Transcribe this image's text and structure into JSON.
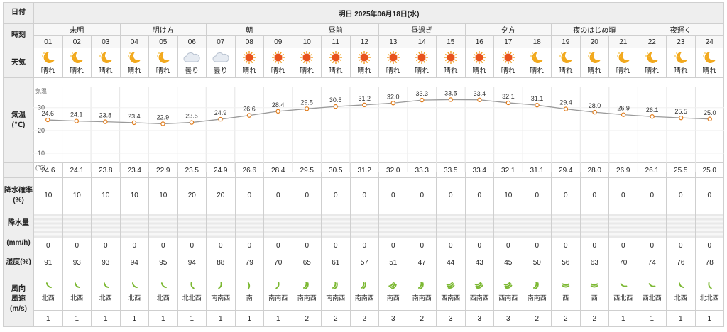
{
  "labels": {
    "date": "日付",
    "time": "時刻",
    "weather": "天気",
    "temp_line1": "気温",
    "temp_line2": "(℃)",
    "rain_prob_line1": "降水確率",
    "rain_prob_line2": "(%)",
    "rain_amt_line1": "降水量",
    "rain_amt_line2": "(mm/h)",
    "humidity": "湿度(%)",
    "wind_line1": "風向",
    "wind_line2": "風速",
    "wind_line3": "(m/s)"
  },
  "header": {
    "date_title": "明日 2025年06月18日(水)"
  },
  "periods": [
    {
      "name": "未明",
      "span": 3
    },
    {
      "name": "明け方",
      "span": 3
    },
    {
      "name": "朝",
      "span": 3
    },
    {
      "name": "昼前",
      "span": 3
    },
    {
      "name": "昼過ぎ",
      "span": 3
    },
    {
      "name": "夕方",
      "span": 3
    },
    {
      "name": "夜のはじめ頃",
      "span": 3
    },
    {
      "name": "夜遅く",
      "span": 3
    }
  ],
  "hours": [
    "01",
    "02",
    "03",
    "04",
    "05",
    "06",
    "07",
    "08",
    "09",
    "10",
    "11",
    "12",
    "13",
    "14",
    "15",
    "16",
    "17",
    "18",
    "19",
    "20",
    "21",
    "22",
    "23",
    "24"
  ],
  "weather": [
    {
      "text": "晴れ",
      "icon": "moon-icon"
    },
    {
      "text": "晴れ",
      "icon": "moon-icon"
    },
    {
      "text": "晴れ",
      "icon": "moon-icon"
    },
    {
      "text": "晴れ",
      "icon": "moon-icon"
    },
    {
      "text": "晴れ",
      "icon": "moon-icon"
    },
    {
      "text": "曇り",
      "icon": "cloud-icon"
    },
    {
      "text": "曇り",
      "icon": "cloud-icon"
    },
    {
      "text": "晴れ",
      "icon": "sun-icon"
    },
    {
      "text": "晴れ",
      "icon": "sun-icon"
    },
    {
      "text": "晴れ",
      "icon": "sun-icon"
    },
    {
      "text": "晴れ",
      "icon": "sun-icon"
    },
    {
      "text": "晴れ",
      "icon": "sun-icon"
    },
    {
      "text": "晴れ",
      "icon": "sun-icon"
    },
    {
      "text": "晴れ",
      "icon": "sun-icon"
    },
    {
      "text": "晴れ",
      "icon": "sun-icon"
    },
    {
      "text": "晴れ",
      "icon": "sun-icon"
    },
    {
      "text": "晴れ",
      "icon": "sun-icon"
    },
    {
      "text": "晴れ",
      "icon": "moon-icon"
    },
    {
      "text": "晴れ",
      "icon": "moon-icon"
    },
    {
      "text": "晴れ",
      "icon": "moon-icon"
    },
    {
      "text": "晴れ",
      "icon": "moon-icon"
    },
    {
      "text": "晴れ",
      "icon": "moon-icon"
    },
    {
      "text": "晴れ",
      "icon": "moon-icon"
    },
    {
      "text": "晴れ",
      "icon": "moon-icon"
    }
  ],
  "temperature": [
    "24.6",
    "24.1",
    "23.8",
    "23.4",
    "22.9",
    "23.5",
    "24.9",
    "26.6",
    "28.4",
    "29.5",
    "30.5",
    "31.2",
    "32.0",
    "33.3",
    "33.5",
    "33.4",
    "32.1",
    "31.1",
    "29.4",
    "28.0",
    "26.9",
    "26.1",
    "25.5",
    "25.0"
  ],
  "rain_probability": [
    "10",
    "10",
    "10",
    "10",
    "10",
    "20",
    "20",
    "0",
    "0",
    "0",
    "0",
    "0",
    "0",
    "0",
    "0",
    "0",
    "10",
    "0",
    "0",
    "0",
    "0",
    "0",
    "0",
    "0"
  ],
  "rain_amount": [
    "0",
    "0",
    "0",
    "0",
    "0",
    "0",
    "0",
    "0",
    "0",
    "0",
    "0",
    "0",
    "0",
    "0",
    "0",
    "0",
    "0",
    "0",
    "0",
    "0",
    "0",
    "0",
    "0",
    "0"
  ],
  "humidity": [
    "91",
    "93",
    "93",
    "94",
    "95",
    "94",
    "88",
    "79",
    "70",
    "65",
    "61",
    "57",
    "51",
    "47",
    "44",
    "43",
    "45",
    "50",
    "56",
    "63",
    "70",
    "74",
    "76",
    "78"
  ],
  "wind_direction": [
    "北西",
    "北西",
    "北西",
    "北西",
    "北西",
    "北北西",
    "南南西",
    "南",
    "南南西",
    "南南西",
    "南南西",
    "南南西",
    "南西",
    "南南西",
    "西南西",
    "西南西",
    "西南西",
    "南南西",
    "西",
    "西",
    "西北西",
    "西北西",
    "北西",
    "北北西"
  ],
  "wind_speed": [
    "1",
    "1",
    "1",
    "1",
    "1",
    "1",
    "1",
    "1",
    "1",
    "2",
    "2",
    "2",
    "3",
    "2",
    "3",
    "3",
    "3",
    "2",
    "2",
    "2",
    "1",
    "1",
    "1",
    "1"
  ],
  "chart_data": {
    "type": "line",
    "x": [
      "01",
      "02",
      "03",
      "04",
      "05",
      "06",
      "07",
      "08",
      "09",
      "10",
      "11",
      "12",
      "13",
      "14",
      "15",
      "16",
      "17",
      "18",
      "19",
      "20",
      "21",
      "22",
      "23",
      "24"
    ],
    "series": [
      {
        "values": [
          24.6,
          24.1,
          23.8,
          23.4,
          22.9,
          23.5,
          24.9,
          26.6,
          28.4,
          29.5,
          30.5,
          31.2,
          32.0,
          33.3,
          33.5,
          33.4,
          32.1,
          31.1,
          29.4,
          28.0,
          26.9,
          26.1,
          25.5,
          25.0
        ]
      }
    ],
    "ylabel_top": "気温",
    "ylabel_bottom": "(℃)",
    "y_ticks": [
      "30",
      "20",
      "10"
    ],
    "ylim": [
      5,
      38
    ],
    "grid": true
  },
  "colors": {
    "line": "#9a9a9a",
    "marker_stroke": "#e07b1a",
    "marker_fill": "#ffffff",
    "moon": "#f2a91e",
    "sun": "#e8521c",
    "cloud": "#b8c2d0",
    "wind": "#7cb832"
  }
}
